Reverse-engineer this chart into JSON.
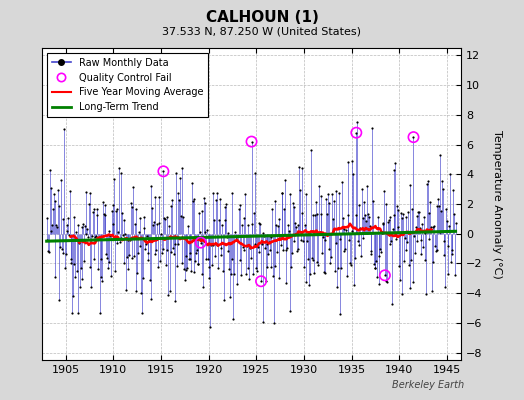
{
  "title": "CALHOUN (1)",
  "subtitle": "37.533 N, 87.250 W (United States)",
  "ylabel": "Temperature Anomaly (°C)",
  "watermark": "Berkeley Earth",
  "xlim": [
    1902.5,
    1946.5
  ],
  "ylim": [
    -8.5,
    12.5
  ],
  "yticks": [
    -8,
    -6,
    -4,
    -2,
    0,
    2,
    4,
    6,
    8,
    10,
    12
  ],
  "xticks": [
    1905,
    1910,
    1915,
    1920,
    1925,
    1930,
    1935,
    1940,
    1945
  ],
  "bg_color": "#d8d8d8",
  "plot_bg_color": "#ffffff",
  "raw_line_color": "#4444cc",
  "raw_marker_color": "black",
  "mavg_color": "red",
  "trend_color": "green",
  "qc_fail_color": "magenta",
  "seed": 12345,
  "n_months": 516,
  "start_year": 1903.0
}
